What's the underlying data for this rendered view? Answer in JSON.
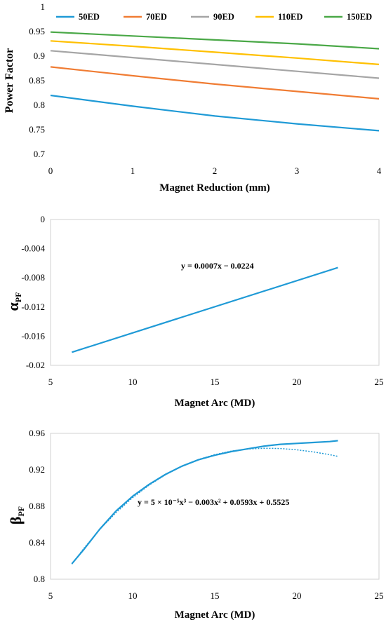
{
  "chart_data": [
    {
      "type": "line",
      "title": "",
      "xlabel": "Magnet Reduction (mm)",
      "ylabel": "Power Factor",
      "xlim": [
        0,
        4
      ],
      "ylim": [
        0.7,
        1.0
      ],
      "xticks": [
        "0",
        "1",
        "2",
        "3",
        "4"
      ],
      "yticks": [
        "0.7",
        "0.75",
        "0.8",
        "0.85",
        "0.9",
        "0.95",
        "1"
      ],
      "legend": "top",
      "grid": false,
      "x": [
        0,
        1,
        2,
        3,
        4
      ],
      "series": [
        {
          "name": "50ED",
          "color": "#1f9ad6",
          "values": [
            0.82,
            0.798,
            0.778,
            0.762,
            0.748
          ]
        },
        {
          "name": "70ED",
          "color": "#f07c33",
          "values": [
            0.878,
            0.86,
            0.843,
            0.828,
            0.813
          ]
        },
        {
          "name": "90ED",
          "color": "#a5a5a5",
          "values": [
            0.911,
            0.897,
            0.883,
            0.869,
            0.855
          ]
        },
        {
          "name": "110ED",
          "color": "#ffc000",
          "values": [
            0.931,
            0.92,
            0.908,
            0.896,
            0.883
          ]
        },
        {
          "name": "150ED",
          "color": "#4aa847",
          "values": [
            0.949,
            0.941,
            0.933,
            0.925,
            0.915
          ]
        }
      ]
    },
    {
      "type": "line",
      "title": "",
      "xlabel": "Magnet Arc (MD)",
      "ylabel_main": "α",
      "ylabel_sub": "PF",
      "xlim": [
        5,
        25
      ],
      "ylim": [
        -0.02,
        0
      ],
      "xticks": [
        "5",
        "10",
        "15",
        "20",
        "25"
      ],
      "yticks": [
        "-0.02",
        "-0.016",
        "-0.012",
        "-0.008",
        "-0.004",
        "0"
      ],
      "grid": false,
      "annotation": "y = 0.0007x − 0.0224",
      "series": [
        {
          "color": "#1f9ad6",
          "x": [
            6.3,
            22.5
          ],
          "values": [
            -0.0182,
            -0.0066
          ]
        }
      ]
    },
    {
      "type": "line",
      "title": "",
      "xlabel": "Magnet Arc (MD)",
      "ylabel_main": "β",
      "ylabel_sub": "PF",
      "xlim": [
        5,
        25
      ],
      "ylim": [
        0.8,
        0.96
      ],
      "xticks": [
        "5",
        "10",
        "15",
        "20",
        "25"
      ],
      "yticks": [
        "0.8",
        "0.84",
        "0.88",
        "0.92",
        "0.96"
      ],
      "grid": false,
      "annotation": "y = 5 × 10⁻⁵x³ − 0.003x² + 0.0593x + 0.5525",
      "series": [
        {
          "color": "#1f9ad6",
          "x": [
            6.3,
            7,
            8,
            9,
            10,
            11,
            12,
            13,
            14,
            15,
            16,
            17,
            18,
            19,
            20,
            21,
            22,
            22.5
          ],
          "values": [
            0.817,
            0.832,
            0.855,
            0.875,
            0.891,
            0.904,
            0.915,
            0.924,
            0.931,
            0.936,
            0.94,
            0.943,
            0.946,
            0.948,
            0.949,
            0.95,
            0.951,
            0.952
          ]
        },
        {
          "color": "#1f9ad6",
          "dashed": true,
          "x": [
            6.3,
            7,
            8,
            9,
            10,
            11,
            12,
            13,
            14,
            15,
            16,
            17,
            18,
            19,
            20,
            21,
            22,
            22.5
          ],
          "values": [
            0.8166,
            0.8332,
            0.8546,
            0.8733,
            0.8895,
            0.9032,
            0.9146,
            0.9239,
            0.9312,
            0.9367,
            0.9405,
            0.9428,
            0.9437,
            0.9434,
            0.942,
            0.9397,
            0.9366,
            0.9348
          ]
        }
      ]
    }
  ]
}
